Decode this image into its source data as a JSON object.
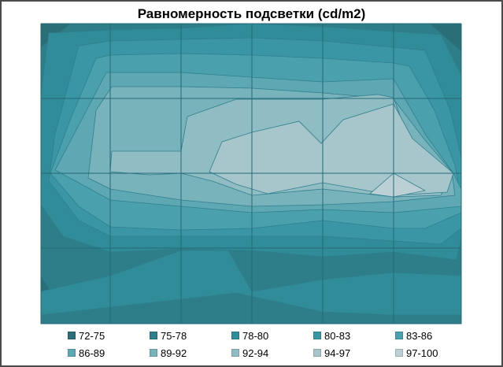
{
  "chart_data": {
    "type": "contour",
    "title": "Равномерность подсветки (cd/m2)",
    "grid": true,
    "legend_position": "bottom",
    "levels": [
      {
        "label": "72-75",
        "color": "#2a6e78"
      },
      {
        "label": "75-78",
        "color": "#2e7e8a"
      },
      {
        "label": "78-80",
        "color": "#318c99"
      },
      {
        "label": "80-83",
        "color": "#3a96a4"
      },
      {
        "label": "83-86",
        "color": "#4aa0ad"
      },
      {
        "label": "86-89",
        "color": "#5ea8b4"
      },
      {
        "label": "89-92",
        "color": "#78b2bb"
      },
      {
        "label": "92-94",
        "color": "#90bcc4"
      },
      {
        "label": "94-97",
        "color": "#a6c6cc"
      },
      {
        "label": "97-100",
        "color": "#bad0d4"
      }
    ]
  }
}
